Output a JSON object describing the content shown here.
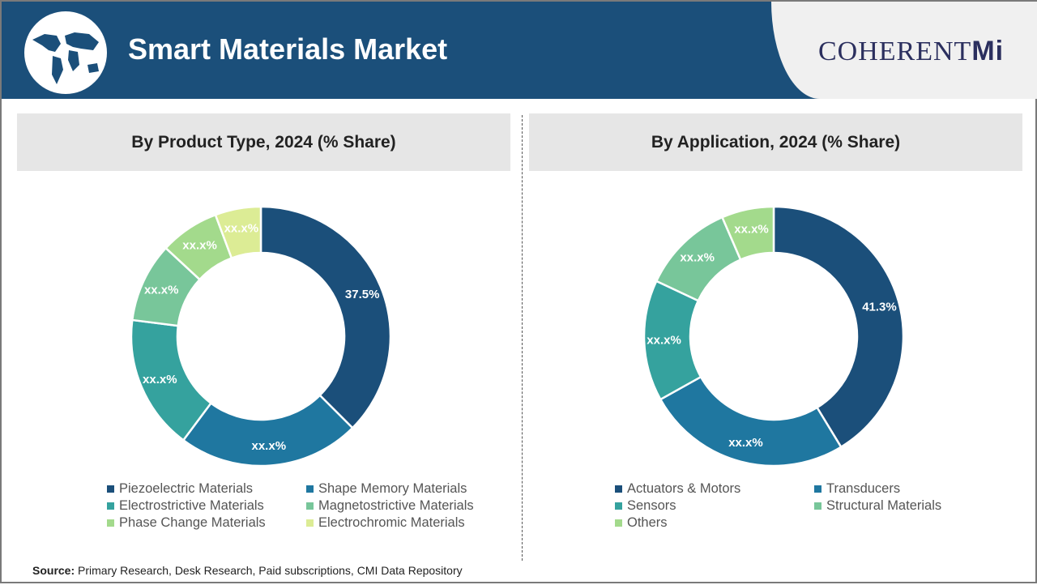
{
  "header": {
    "title": "Smart Materials Market",
    "brand": "COHERENT",
    "brand_suffix": "Mi"
  },
  "chart_data": [
    {
      "type": "pie",
      "donut": true,
      "title": "By Product Type, 2024 (% Share)",
      "categories": [
        "Piezoelectric Materials",
        "Shape Memory Materials",
        "Electrostrictive Materials",
        "Magnetostrictive Materials",
        "Phase Change Materials",
        "Electrochromic Materials"
      ],
      "values": [
        37.5,
        22.7,
        16.8,
        9.9,
        7.4,
        5.7
      ],
      "data_labels": [
        "37.5%",
        "xx.x%",
        "xx.x%",
        "xx.x%",
        "xx.x%",
        "xx.x%"
      ],
      "colors": [
        "#1b4f7a",
        "#1f77a0",
        "#35a29e",
        "#78c69a",
        "#a3da8c",
        "#dcec95"
      ],
      "legend": "bottom"
    },
    {
      "type": "pie",
      "donut": true,
      "title": "By Application, 2024 (% Share)",
      "categories": [
        "Actuators & Motors",
        "Transducers",
        "Sensors",
        "Structural Materials",
        "Others"
      ],
      "values": [
        41.3,
        25.6,
        15.1,
        11.5,
        6.5
      ],
      "data_labels": [
        "41.3%",
        "xx.x%",
        "xx.x%",
        "xx.x%",
        "xx.x%"
      ],
      "colors": [
        "#1b4f7a",
        "#1f77a0",
        "#35a29e",
        "#78c69a",
        "#a3da8c"
      ],
      "legend": "bottom"
    }
  ],
  "source": {
    "label": "Source:",
    "text": " Primary Research, Desk Research, Paid subscriptions, CMI Data Repository"
  }
}
